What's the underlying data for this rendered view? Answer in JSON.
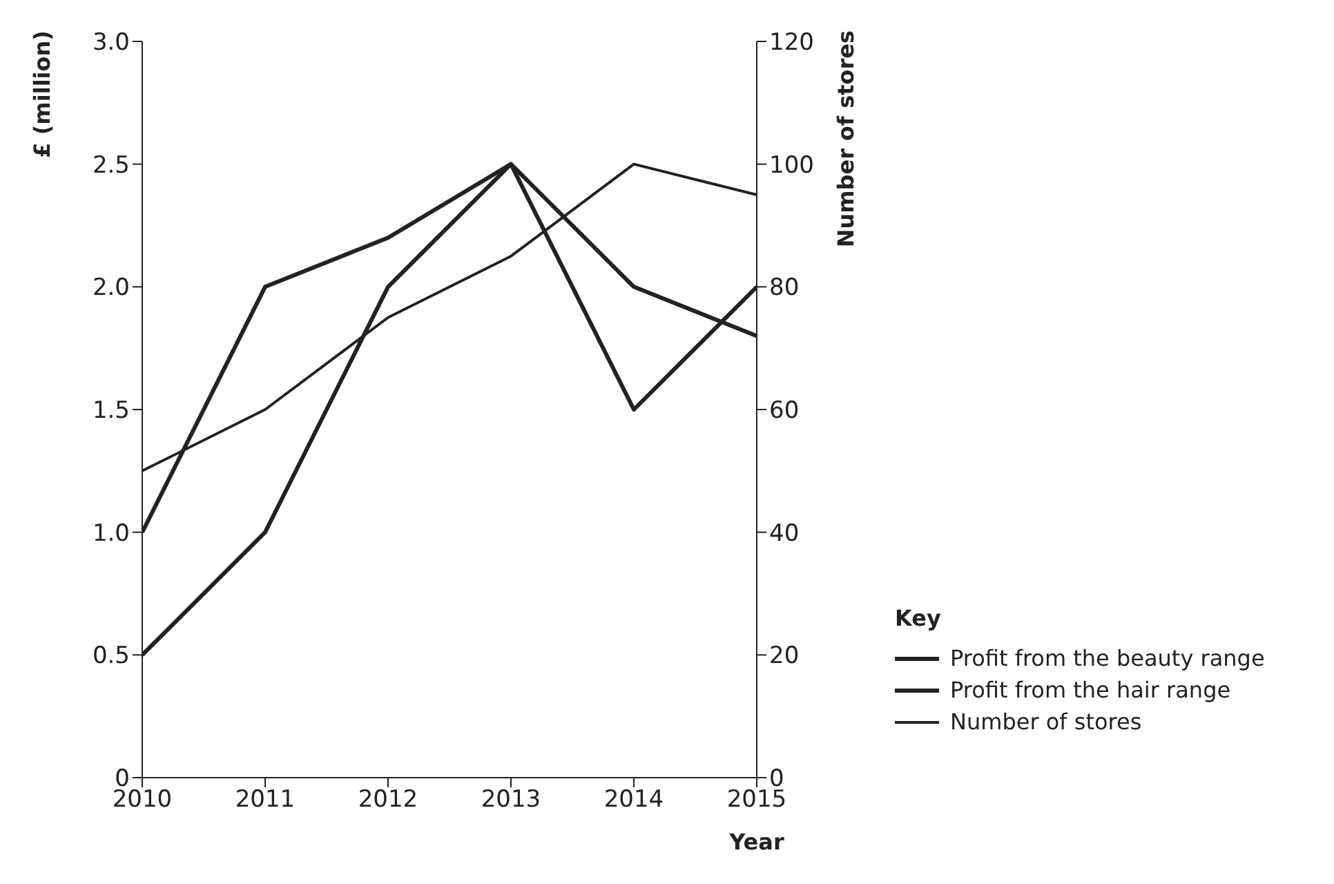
{
  "chart_data": {
    "type": "line",
    "xlabel": "Year",
    "ylabel": "£ (million)",
    "y2label": "Number of stores",
    "legend_title": "Key",
    "x": [
      2010,
      2011,
      2012,
      2013,
      2014,
      2015
    ],
    "series": [
      {
        "name": "Profit from the beauty range",
        "color": "#222222",
        "values": [
          1.0,
          2.0,
          2.2,
          2.5,
          2.0,
          1.8
        ]
      },
      {
        "name": "Profit from the hair range",
        "color": "#222222",
        "values": [
          0.5,
          1.0,
          2.0,
          2.5,
          1.5,
          2.0
        ]
      },
      {
        "name": "Number of stores",
        "color": "#222222",
        "axis": "y2",
        "values": [
          50,
          60,
          75,
          85,
          100,
          95
        ]
      }
    ],
    "xlim": [
      2010,
      2015
    ],
    "xticks": [
      2010,
      2011,
      2012,
      2013,
      2014,
      2015
    ],
    "ylim": [
      0,
      3
    ],
    "yticks": [
      0,
      0.5,
      {
        "value": 1,
        "label": "1.0"
      },
      1.5,
      {
        "value": 2,
        "label": "2.0"
      },
      2.5,
      {
        "value": 3,
        "label": "3.0"
      }
    ],
    "y2lim": [
      0,
      120
    ],
    "y2ticks": [
      0,
      20,
      40,
      60,
      80,
      100,
      120
    ],
    "grid": false,
    "legend": "right",
    "marker": "none",
    "line_style": "solid"
  }
}
